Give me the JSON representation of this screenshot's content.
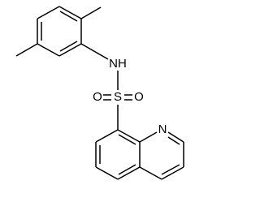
{
  "atoms": [
    {
      "label": "NH"
    },
    {
      "label": "S"
    },
    {
      "label": "O"
    },
    {
      "label": "O"
    },
    {
      "label": "N"
    }
  ]
}
